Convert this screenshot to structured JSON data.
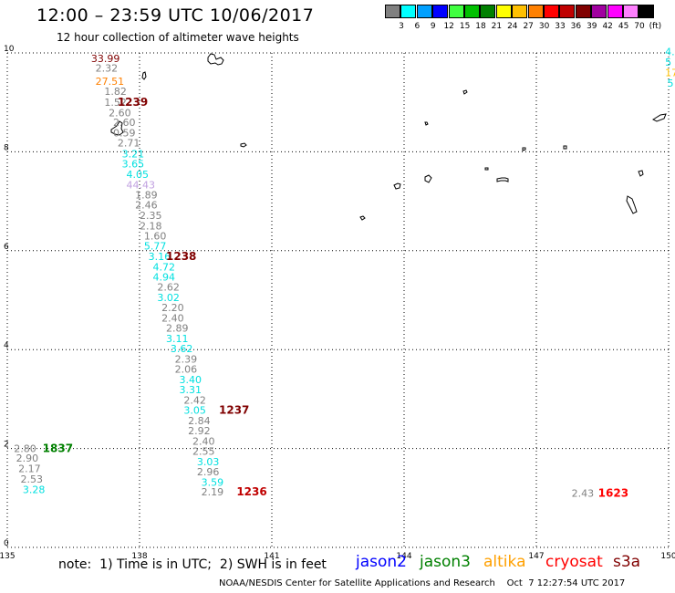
{
  "title": "12:00 – 23:59 UTC 10/06/2017",
  "subtitle": "12 hour collection of altimeter wave heights",
  "colorbar": {
    "colors": [
      "#808080",
      "#00ffff",
      "#00a0ff",
      "#0000ff",
      "#40ff40",
      "#00c000",
      "#008000",
      "#ffff00",
      "#ffc000",
      "#ff8000",
      "#ff0000",
      "#c00000",
      "#800000",
      "#a000a0",
      "#ff00ff",
      "#ff80ff",
      "#000000"
    ],
    "labels": [
      "3",
      "6",
      "9",
      "12",
      "15",
      "18",
      "21",
      "24",
      "27",
      "30",
      "33",
      "36",
      "39",
      "42",
      "45",
      "70",
      "(ft)"
    ]
  },
  "chart_data": {
    "type": "scatter",
    "xlim": [
      135,
      150
    ],
    "ylim": [
      0,
      10
    ],
    "x_ticks": [
      "135",
      "138",
      "141",
      "144",
      "147",
      "150"
    ],
    "y_ticks": [
      "0",
      "2",
      "4",
      "6",
      "8",
      "10"
    ],
    "grid": true,
    "wave_heights": [
      {
        "label": "33.99",
        "lon": 136.9,
        "lat": 9.82,
        "color": "#800000"
      },
      {
        "label": "2.32",
        "lon": 137.0,
        "lat": 9.62,
        "color": "#808080"
      },
      {
        "label": "27.51",
        "lon": 137.0,
        "lat": 9.35,
        "color": "#ff8000"
      },
      {
        "label": "1.82",
        "lon": 137.2,
        "lat": 9.15,
        "color": "#808080"
      },
      {
        "label": "1.52",
        "lon": 137.2,
        "lat": 8.93,
        "color": "#808080"
      },
      {
        "label": "2.60",
        "lon": 137.3,
        "lat": 8.72,
        "color": "#808080"
      },
      {
        "label": "2.60",
        "lon": 137.4,
        "lat": 8.52,
        "color": "#808080"
      },
      {
        "label": "0.59",
        "lon": 137.4,
        "lat": 8.31,
        "color": "#808080"
      },
      {
        "label": "2.71",
        "lon": 137.5,
        "lat": 8.11,
        "color": "#808080"
      },
      {
        "label": "3.21",
        "lon": 137.6,
        "lat": 7.89,
        "color": "#00e0e0"
      },
      {
        "label": "3.65",
        "lon": 137.6,
        "lat": 7.68,
        "color": "#00e0e0"
      },
      {
        "label": "4.05",
        "lon": 137.7,
        "lat": 7.47,
        "color": "#00e0e0"
      },
      {
        "label": "44.43",
        "lon": 137.7,
        "lat": 7.26,
        "color": "#c0a0e0"
      },
      {
        "label": "1.89",
        "lon": 137.9,
        "lat": 7.06,
        "color": "#808080"
      },
      {
        "label": "2.46",
        "lon": 137.9,
        "lat": 6.85,
        "color": "#808080"
      },
      {
        "label": "2.35",
        "lon": 138.0,
        "lat": 6.64,
        "color": "#808080"
      },
      {
        "label": "2.18",
        "lon": 138.0,
        "lat": 6.43,
        "color": "#808080"
      },
      {
        "label": "1.60",
        "lon": 138.1,
        "lat": 6.23,
        "color": "#808080"
      },
      {
        "label": "5.77",
        "lon": 138.1,
        "lat": 6.02,
        "color": "#00e0e0"
      },
      {
        "label": "3.16",
        "lon": 138.2,
        "lat": 5.81,
        "color": "#00e0e0"
      },
      {
        "label": "4.72",
        "lon": 138.3,
        "lat": 5.6,
        "color": "#00e0e0"
      },
      {
        "label": "4.94",
        "lon": 138.3,
        "lat": 5.4,
        "color": "#00e0e0"
      },
      {
        "label": "2.62",
        "lon": 138.4,
        "lat": 5.19,
        "color": "#808080"
      },
      {
        "label": "3.02",
        "lon": 138.4,
        "lat": 4.98,
        "color": "#00e0e0"
      },
      {
        "label": "2.20",
        "lon": 138.5,
        "lat": 4.78,
        "color": "#808080"
      },
      {
        "label": "2.40",
        "lon": 138.5,
        "lat": 4.57,
        "color": "#808080"
      },
      {
        "label": "2.89",
        "lon": 138.6,
        "lat": 4.36,
        "color": "#808080"
      },
      {
        "label": "3.11",
        "lon": 138.6,
        "lat": 4.15,
        "color": "#00e0e0"
      },
      {
        "label": "3.62",
        "lon": 138.7,
        "lat": 3.95,
        "color": "#00e0e0"
      },
      {
        "label": "2.39",
        "lon": 138.8,
        "lat": 3.74,
        "color": "#808080"
      },
      {
        "label": "2.06",
        "lon": 138.8,
        "lat": 3.53,
        "color": "#808080"
      },
      {
        "label": "3.40",
        "lon": 138.9,
        "lat": 3.32,
        "color": "#00e0e0"
      },
      {
        "label": "3.31",
        "lon": 138.9,
        "lat": 3.12,
        "color": "#00e0e0"
      },
      {
        "label": "2.42",
        "lon": 139.0,
        "lat": 2.91,
        "color": "#808080"
      },
      {
        "label": "3.05",
        "lon": 139.0,
        "lat": 2.7,
        "color": "#00e0e0"
      },
      {
        "label": "2.84",
        "lon": 139.1,
        "lat": 2.49,
        "color": "#808080"
      },
      {
        "label": "2.92",
        "lon": 139.1,
        "lat": 2.29,
        "color": "#808080"
      },
      {
        "label": "2.40",
        "lon": 139.2,
        "lat": 2.08,
        "color": "#808080"
      },
      {
        "label": "2.55",
        "lon": 139.2,
        "lat": 1.87,
        "color": "#808080"
      },
      {
        "label": "3.03",
        "lon": 139.3,
        "lat": 1.66,
        "color": "#00e0e0"
      },
      {
        "label": "2.96",
        "lon": 139.3,
        "lat": 1.46,
        "color": "#808080"
      },
      {
        "label": "3.59",
        "lon": 139.4,
        "lat": 1.25,
        "color": "#00e0e0"
      },
      {
        "label": "2.19",
        "lon": 139.4,
        "lat": 1.05,
        "color": "#808080"
      },
      {
        "label": "2.80",
        "lon": 135.15,
        "lat": 1.93,
        "color": "#808080"
      },
      {
        "label": "2.90",
        "lon": 135.2,
        "lat": 1.73,
        "color": "#808080"
      },
      {
        "label": "2.17",
        "lon": 135.25,
        "lat": 1.52,
        "color": "#808080"
      },
      {
        "label": "2.53",
        "lon": 135.3,
        "lat": 1.31,
        "color": "#808080"
      },
      {
        "label": "3.28",
        "lon": 135.35,
        "lat": 1.1,
        "color": "#00e0e0"
      },
      {
        "label": "2.43",
        "lon": 147.8,
        "lat": 1.02,
        "color": "#808080"
      },
      {
        "label": "4.",
        "lon": 149.92,
        "lat": 9.95,
        "color": "#00e0e0"
      },
      {
        "label": "5",
        "lon": 149.92,
        "lat": 9.74,
        "color": "#00e0e0"
      },
      {
        "label": "17",
        "lon": 149.92,
        "lat": 9.53,
        "color": "#ffc000"
      },
      {
        "label": "5",
        "lon": 149.97,
        "lat": 9.32,
        "color": "#00e0e0"
      }
    ],
    "pass_times": [
      {
        "label": "1239",
        "lon": 137.5,
        "lat": 8.93,
        "color": "#800000"
      },
      {
        "label": "1238",
        "lon": 138.6,
        "lat": 5.81,
        "color": "#800000"
      },
      {
        "label": "1237",
        "lon": 139.8,
        "lat": 2.7,
        "color": "#800000"
      },
      {
        "label": "1236",
        "lon": 140.2,
        "lat": 1.05,
        "color": "#c00000"
      },
      {
        "label": "1837",
        "lon": 135.8,
        "lat": 1.93,
        "color": "#008000"
      },
      {
        "label": "1623",
        "lon": 148.4,
        "lat": 1.02,
        "color": "#ff0000"
      }
    ]
  },
  "note": {
    "prefix": "note:  1) Time is in UTC;  2) SWH is in feet",
    "satellites": [
      {
        "name": "jason2",
        "color": "#0000ff"
      },
      {
        "name": "jason3",
        "color": "#008000"
      },
      {
        "name": "altika",
        "color": "#ffa000"
      },
      {
        "name": "cryosat",
        "color": "#ff0000"
      },
      {
        "name": "s3a",
        "color": "#800000"
      }
    ]
  },
  "footer": "NOAA/NESDIS Center for Satellite Applications and Research    Oct  7 12:27:54 UTC 2017"
}
